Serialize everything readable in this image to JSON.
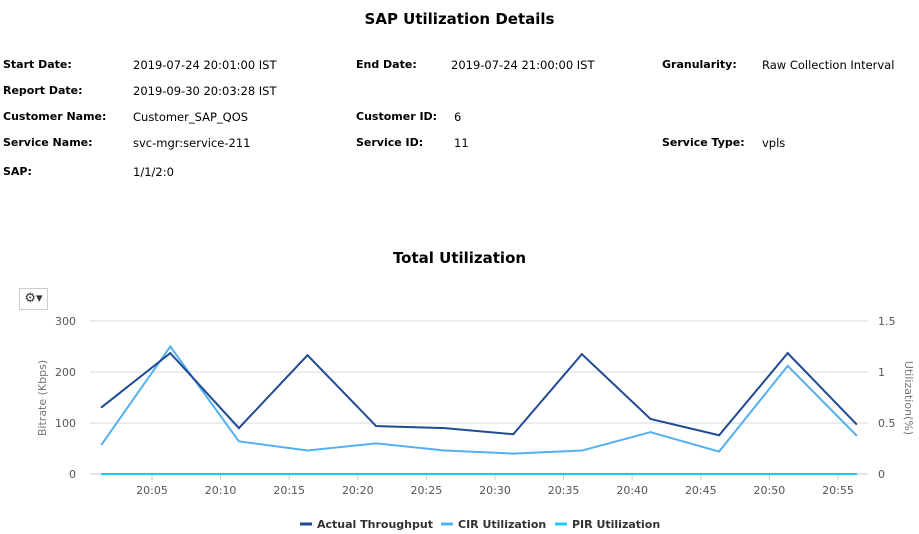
{
  "report": {
    "title": "SAP Utilization Details",
    "fields": [
      {
        "label": "Start Date:",
        "value": "2019-07-24 20:01:00 IST"
      },
      {
        "label": "End Date:",
        "value": "2019-07-24 21:00:00 IST"
      },
      {
        "label": "Granularity:",
        "value": "Raw Collection Interval"
      },
      {
        "label": "Report Date:",
        "value": "2019-09-30 20:03:28 IST"
      },
      {
        "label": "Customer Name:",
        "value": "Customer_SAP_QOS"
      },
      {
        "label": "Customer ID:",
        "value": "6"
      },
      {
        "label": "Service Name:",
        "value": "svc-mgr:service-211"
      },
      {
        "label": "Service ID:",
        "value": "11"
      },
      {
        "label": "Service Type:",
        "value": "vpls"
      },
      {
        "label": "SAP:",
        "value": "1/1/2:0"
      }
    ]
  },
  "toolbar": {
    "settings_icon": "gears-icon"
  },
  "chart_data": {
    "type": "line",
    "title": "Total Utilization",
    "ylabel": "Bitrate (Kbps)",
    "y2label": "Utilization(%)",
    "ylim": [
      0,
      300
    ],
    "y2lim": [
      0,
      1.5
    ],
    "yticks": [
      "0",
      "100",
      "200",
      "300"
    ],
    "y2ticks": [
      "0",
      "0.5",
      "1",
      "1.5"
    ],
    "xticks": [
      "20:05",
      "20:10",
      "20:15",
      "20:20",
      "20:25",
      "20:30",
      "20:35",
      "20:40",
      "20:45",
      "20:50",
      "20:55"
    ],
    "x": [
      "20:01:20",
      "20:06:20",
      "20:11:20",
      "20:16:20",
      "20:21:20",
      "20:26:20",
      "20:31:20",
      "20:36:20",
      "20:41:20",
      "20:46:20",
      "20:51:20",
      "20:56:20"
    ],
    "grid": true,
    "legend": "bottom",
    "series": [
      {
        "name": "Actual Throughput",
        "axis": "left",
        "color": "#1f4a94",
        "values": [
          131,
          237,
          90,
          233,
          94,
          90,
          78,
          235,
          108,
          76,
          237,
          98
        ]
      },
      {
        "name": "CIR Utilization",
        "axis": "right",
        "color": "#55b1ee",
        "values": [
          0.29,
          1.25,
          0.32,
          0.23,
          0.3,
          0.23,
          0.2,
          0.23,
          0.41,
          0.22,
          1.06,
          0.38
        ]
      },
      {
        "name": "PIR Utilization",
        "axis": "right",
        "color": "#1ec8f5",
        "values": [
          0,
          0,
          0,
          0,
          0,
          0,
          0,
          0,
          0,
          0,
          0,
          0
        ]
      }
    ]
  }
}
